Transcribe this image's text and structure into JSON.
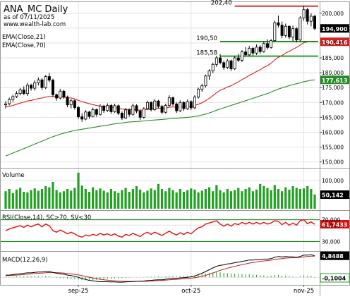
{
  "header": {
    "title": "ANA_MC Daily",
    "as_of": "as of 07/11/2025",
    "site": "www.wealth-lab.com"
  },
  "colors": {
    "bg": "#ffffff",
    "frame": "#9a9a9a",
    "grid": "#e2e2e2",
    "candle_up_fill": "#ffffff",
    "candle_down_fill": "#000000",
    "ema21": "#d42020",
    "ema70": "#2a8a2a",
    "level_red": "#cc0000",
    "level_green": "#008000",
    "volume_bar": "#22a022",
    "rsi_line": "#e01010",
    "macd_line": "#000000",
    "macd_signal": "#c02020",
    "macd_hist": "#22a022",
    "tag_price_bg": "#000000",
    "tag_ema21_bg": "#d42020",
    "tag_ema70_bg": "#2a8a2a"
  },
  "price_panel": {
    "indicator_labels": [
      "EMA(Close,21)",
      "EMA(Close,70)"
    ],
    "y_ticks": [
      150,
      155,
      160,
      165,
      170,
      175,
      180,
      185,
      190,
      195,
      200
    ],
    "y_tick_labels": [
      "150,000",
      "155,000",
      "160,000",
      "165,000",
      "170,000",
      "175,000",
      "180,000",
      "185,000",
      "190,000",
      "195,000",
      "200,000"
    ],
    "ylim": [
      148.5,
      203.5
    ],
    "tags": {
      "close": "194,900",
      "ema21": "190,416",
      "ema70": "177,613"
    },
    "levels": [
      {
        "label": "202,40",
        "value": 202.4,
        "from_bar": 63,
        "color_key": "level_red"
      },
      {
        "label": "190,50",
        "value": 190.5,
        "from_bar": 59,
        "color_key": "level_green"
      },
      {
        "label": "185,58",
        "value": 185.58,
        "from_bar": 59,
        "color_key": "level_green"
      }
    ]
  },
  "volume_panel": {
    "label": "Volume",
    "y_ticks": [
      50,
      100
    ],
    "y_tick_labels": [
      "50,000",
      "100,000"
    ],
    "ylim": [
      0,
      140
    ],
    "tag": "50,142"
  },
  "rsi_panel": {
    "label": "RSI(Close,14), SC>70, SV<30",
    "y_ticks": [
      30,
      60,
      70
    ],
    "y_tick_labels": [
      "30,000",
      "60,000",
      "70,000"
    ],
    "ylim": [
      15,
      85
    ],
    "bands": [
      70,
      30
    ],
    "tag": "61,7433"
  },
  "macd_panel": {
    "label": "MACD(12,26,9)",
    "ylim": [
      -1.4,
      5.6
    ],
    "tags": {
      "macd": "4,8488",
      "hist": "-0,1004"
    }
  },
  "x_axis": {
    "labels": [
      {
        "text": "sep-25",
        "bar": 20
      },
      {
        "text": "oct-25",
        "bar": 51
      },
      {
        "text": "nov-25",
        "bar": 82
      }
    ]
  },
  "chart_data": {
    "type": "candlestick",
    "title": "ANA_MC Daily",
    "ylim": [
      148.5,
      203.5
    ],
    "bars": [
      {
        "o": 169.2,
        "h": 170.5,
        "l": 168.0,
        "c": 169.5
      },
      {
        "o": 169.6,
        "h": 171.6,
        "l": 169.0,
        "c": 171.0
      },
      {
        "o": 171.0,
        "h": 172.6,
        "l": 170.2,
        "c": 172.0
      },
      {
        "o": 172.0,
        "h": 173.8,
        "l": 171.5,
        "c": 173.0
      },
      {
        "o": 173.0,
        "h": 174.9,
        "l": 172.4,
        "c": 174.2
      },
      {
        "o": 174.2,
        "h": 175.4,
        "l": 172.5,
        "c": 173.0
      },
      {
        "o": 173.0,
        "h": 176.6,
        "l": 172.2,
        "c": 175.8
      },
      {
        "o": 175.8,
        "h": 176.3,
        "l": 174.0,
        "c": 174.8
      },
      {
        "o": 174.8,
        "h": 177.4,
        "l": 174.0,
        "c": 176.6
      },
      {
        "o": 176.6,
        "h": 178.4,
        "l": 175.7,
        "c": 177.6
      },
      {
        "o": 177.6,
        "h": 178.2,
        "l": 174.2,
        "c": 175.0
      },
      {
        "o": 175.0,
        "h": 179.2,
        "l": 174.5,
        "c": 178.7
      },
      {
        "o": 178.7,
        "h": 179.9,
        "l": 176.8,
        "c": 177.5
      },
      {
        "o": 177.5,
        "h": 178.0,
        "l": 171.8,
        "c": 172.6
      },
      {
        "o": 172.6,
        "h": 173.0,
        "l": 170.6,
        "c": 171.5
      },
      {
        "o": 171.5,
        "h": 174.6,
        "l": 171.0,
        "c": 173.8
      },
      {
        "o": 173.8,
        "h": 174.2,
        "l": 171.2,
        "c": 171.8
      },
      {
        "o": 171.8,
        "h": 172.3,
        "l": 168.4,
        "c": 169.2
      },
      {
        "o": 169.2,
        "h": 171.2,
        "l": 168.0,
        "c": 170.6
      },
      {
        "o": 170.6,
        "h": 171.0,
        "l": 167.6,
        "c": 168.3
      },
      {
        "o": 168.3,
        "h": 168.8,
        "l": 164.5,
        "c": 165.2
      },
      {
        "o": 165.2,
        "h": 166.4,
        "l": 163.5,
        "c": 164.4
      },
      {
        "o": 164.4,
        "h": 167.4,
        "l": 164.0,
        "c": 166.8
      },
      {
        "o": 166.8,
        "h": 167.2,
        "l": 164.5,
        "c": 165.3
      },
      {
        "o": 165.3,
        "h": 168.3,
        "l": 165.0,
        "c": 167.6
      },
      {
        "o": 167.6,
        "h": 168.0,
        "l": 165.2,
        "c": 166.0
      },
      {
        "o": 166.0,
        "h": 169.4,
        "l": 165.6,
        "c": 168.8
      },
      {
        "o": 168.8,
        "h": 169.2,
        "l": 166.5,
        "c": 167.3
      },
      {
        "o": 167.3,
        "h": 169.7,
        "l": 166.8,
        "c": 169.0
      },
      {
        "o": 169.0,
        "h": 169.5,
        "l": 166.2,
        "c": 166.9
      },
      {
        "o": 166.9,
        "h": 169.6,
        "l": 166.5,
        "c": 168.9
      },
      {
        "o": 168.9,
        "h": 169.3,
        "l": 165.8,
        "c": 166.4
      },
      {
        "o": 166.4,
        "h": 167.0,
        "l": 164.1,
        "c": 164.8
      },
      {
        "o": 164.8,
        "h": 168.1,
        "l": 164.4,
        "c": 167.5
      },
      {
        "o": 167.5,
        "h": 168.0,
        "l": 165.2,
        "c": 166.0
      },
      {
        "o": 166.0,
        "h": 169.6,
        "l": 165.6,
        "c": 168.9
      },
      {
        "o": 168.9,
        "h": 169.4,
        "l": 166.4,
        "c": 167.1
      },
      {
        "o": 167.1,
        "h": 167.6,
        "l": 164.1,
        "c": 165.0
      },
      {
        "o": 165.0,
        "h": 168.4,
        "l": 164.6,
        "c": 167.9
      },
      {
        "o": 167.9,
        "h": 170.6,
        "l": 167.5,
        "c": 170.0
      },
      {
        "o": 170.0,
        "h": 170.4,
        "l": 167.0,
        "c": 167.6
      },
      {
        "o": 167.6,
        "h": 171.1,
        "l": 167.2,
        "c": 170.5
      },
      {
        "o": 170.5,
        "h": 170.9,
        "l": 168.1,
        "c": 168.7
      },
      {
        "o": 168.7,
        "h": 169.2,
        "l": 166.1,
        "c": 166.7
      },
      {
        "o": 166.7,
        "h": 169.6,
        "l": 166.3,
        "c": 169.0
      },
      {
        "o": 169.0,
        "h": 172.4,
        "l": 168.6,
        "c": 171.6
      },
      {
        "o": 171.6,
        "h": 172.0,
        "l": 168.9,
        "c": 169.5
      },
      {
        "o": 169.5,
        "h": 170.0,
        "l": 166.5,
        "c": 167.2
      },
      {
        "o": 167.2,
        "h": 170.7,
        "l": 166.8,
        "c": 170.0
      },
      {
        "o": 170.0,
        "h": 170.4,
        "l": 167.2,
        "c": 167.9
      },
      {
        "o": 167.9,
        "h": 171.0,
        "l": 167.5,
        "c": 170.3
      },
      {
        "o": 170.3,
        "h": 170.7,
        "l": 167.5,
        "c": 168.2
      },
      {
        "o": 168.2,
        "h": 172.4,
        "l": 167.8,
        "c": 171.8
      },
      {
        "o": 171.8,
        "h": 175.0,
        "l": 171.3,
        "c": 174.5
      },
      {
        "o": 174.5,
        "h": 176.3,
        "l": 173.6,
        "c": 175.6
      },
      {
        "o": 175.6,
        "h": 179.4,
        "l": 175.0,
        "c": 178.9
      },
      {
        "o": 178.9,
        "h": 181.2,
        "l": 177.6,
        "c": 180.6
      },
      {
        "o": 180.6,
        "h": 183.4,
        "l": 179.8,
        "c": 182.8
      },
      {
        "o": 182.8,
        "h": 185.7,
        "l": 182.0,
        "c": 185.0
      },
      {
        "o": 185.0,
        "h": 186.3,
        "l": 182.8,
        "c": 183.4
      },
      {
        "o": 183.4,
        "h": 184.0,
        "l": 181.0,
        "c": 181.8
      },
      {
        "o": 181.8,
        "h": 184.6,
        "l": 181.2,
        "c": 184.0
      },
      {
        "o": 184.0,
        "h": 184.4,
        "l": 180.6,
        "c": 181.3
      },
      {
        "o": 181.3,
        "h": 185.6,
        "l": 180.9,
        "c": 185.0
      },
      {
        "o": 185.0,
        "h": 186.4,
        "l": 183.6,
        "c": 184.2
      },
      {
        "o": 184.2,
        "h": 187.6,
        "l": 183.6,
        "c": 187.0
      },
      {
        "o": 187.0,
        "h": 188.6,
        "l": 185.4,
        "c": 186.0
      },
      {
        "o": 186.0,
        "h": 189.0,
        "l": 185.5,
        "c": 188.2
      },
      {
        "o": 188.2,
        "h": 188.7,
        "l": 185.8,
        "c": 186.6
      },
      {
        "o": 186.6,
        "h": 189.5,
        "l": 186.0,
        "c": 188.6
      },
      {
        "o": 188.6,
        "h": 189.2,
        "l": 186.4,
        "c": 187.1
      },
      {
        "o": 187.1,
        "h": 190.4,
        "l": 186.7,
        "c": 189.8
      },
      {
        "o": 189.8,
        "h": 191.2,
        "l": 187.8,
        "c": 188.5
      },
      {
        "o": 188.5,
        "h": 191.3,
        "l": 188.1,
        "c": 190.8
      },
      {
        "o": 190.8,
        "h": 197.5,
        "l": 190.3,
        "c": 196.8
      },
      {
        "o": 196.8,
        "h": 199.2,
        "l": 195.2,
        "c": 196.0
      },
      {
        "o": 196.0,
        "h": 197.2,
        "l": 191.6,
        "c": 192.5
      },
      {
        "o": 192.5,
        "h": 196.5,
        "l": 191.8,
        "c": 195.6
      },
      {
        "o": 195.6,
        "h": 196.0,
        "l": 191.3,
        "c": 192.0
      },
      {
        "o": 192.0,
        "h": 195.8,
        "l": 190.5,
        "c": 194.8
      },
      {
        "o": 194.8,
        "h": 195.3,
        "l": 190.2,
        "c": 191.0
      },
      {
        "o": 191.0,
        "h": 199.0,
        "l": 190.6,
        "c": 198.4
      },
      {
        "o": 198.4,
        "h": 202.4,
        "l": 197.5,
        "c": 201.2
      },
      {
        "o": 201.2,
        "h": 201.8,
        "l": 196.2,
        "c": 197.3
      },
      {
        "o": 197.3,
        "h": 200.0,
        "l": 195.6,
        "c": 199.0
      },
      {
        "o": 199.0,
        "h": 199.4,
        "l": 194.3,
        "c": 194.9
      }
    ],
    "ema21": [
      168.5,
      168.7,
      169.0,
      169.4,
      169.8,
      170.1,
      170.5,
      170.7,
      171.0,
      171.3,
      171.5,
      171.8,
      172.0,
      172.0,
      171.9,
      171.9,
      171.8,
      171.6,
      171.5,
      171.2,
      170.7,
      170.3,
      169.9,
      169.6,
      169.3,
      169.0,
      168.8,
      168.6,
      168.5,
      168.4,
      168.3,
      168.0,
      167.8,
      167.7,
      167.6,
      167.6,
      167.5,
      167.4,
      167.5,
      167.7,
      167.7,
      168.0,
      168.1,
      168.0,
      168.1,
      168.4,
      168.5,
      168.4,
      168.5,
      168.5,
      168.6,
      168.6,
      169.0,
      169.4,
      169.9,
      170.6,
      171.4,
      172.3,
      173.3,
      174.1,
      174.6,
      175.2,
      175.6,
      176.3,
      176.9,
      177.7,
      178.3,
      179.1,
      179.7,
      180.4,
      181.0,
      181.8,
      182.4,
      183.2,
      184.3,
      185.2,
      185.8,
      186.6,
      187.2,
      187.9,
      188.5,
      189.3,
      190.1,
      190.4,
      190.6,
      190.4
    ],
    "ema70": [
      152.0,
      152.5,
      153.0,
      153.5,
      154.0,
      154.5,
      155.0,
      155.5,
      156.0,
      156.5,
      157.0,
      157.5,
      158.0,
      158.5,
      158.9,
      159.3,
      159.7,
      160.0,
      160.3,
      160.6,
      160.8,
      161.0,
      161.2,
      161.4,
      161.6,
      161.8,
      162.0,
      162.2,
      162.4,
      162.6,
      162.8,
      163.0,
      163.1,
      163.3,
      163.4,
      163.5,
      163.6,
      163.7,
      163.8,
      163.9,
      164.0,
      164.1,
      164.2,
      164.3,
      164.4,
      164.5,
      164.6,
      164.7,
      164.8,
      164.9,
      165.0,
      165.1,
      165.3,
      165.5,
      165.8,
      166.1,
      166.5,
      166.9,
      167.4,
      167.8,
      168.2,
      168.6,
      169.0,
      169.4,
      169.8,
      170.2,
      170.6,
      171.0,
      171.4,
      171.8,
      172.2,
      172.6,
      173.0,
      173.5,
      174.0,
      174.5,
      174.9,
      175.3,
      175.7,
      176.0,
      176.3,
      176.6,
      177.0,
      177.2,
      177.5,
      177.6
    ],
    "volume": [
      62,
      70,
      55,
      68,
      74,
      60,
      58,
      66,
      72,
      64,
      70,
      80,
      76,
      95,
      66,
      58,
      62,
      70,
      64,
      74,
      128,
      82,
      70,
      60,
      76,
      66,
      72,
      64,
      58,
      70,
      62,
      56,
      66,
      74,
      60,
      70,
      80,
      68,
      58,
      64,
      72,
      66,
      88,
      70,
      62,
      74,
      66,
      58,
      70,
      60,
      66,
      72,
      68,
      58,
      64,
      70,
      76,
      62,
      84,
      66,
      58,
      70,
      62,
      66,
      74,
      62,
      70,
      76,
      62,
      68,
      88,
      80,
      74,
      66,
      84,
      70,
      62,
      76,
      68,
      80,
      74,
      70,
      72,
      80,
      70,
      50
    ],
    "rsi": [
      50,
      53,
      55,
      57,
      59,
      56,
      60,
      57,
      60,
      62,
      57,
      62,
      59,
      50,
      47,
      51,
      48,
      44,
      47,
      44,
      40,
      38,
      42,
      40,
      43,
      41,
      45,
      42,
      44,
      41,
      44,
      40,
      38,
      43,
      41,
      45,
      42,
      39,
      44,
      47,
      43,
      47,
      44,
      41,
      45,
      49,
      45,
      42,
      46,
      43,
      47,
      44,
      50,
      55,
      57,
      62,
      64,
      66,
      68,
      62,
      58,
      62,
      58,
      63,
      61,
      65,
      62,
      65,
      62,
      65,
      62,
      65,
      62,
      64,
      68,
      67,
      61,
      65,
      60,
      64,
      60,
      68,
      70,
      63,
      66,
      61.7
    ],
    "macd": [
      0.5,
      0.5,
      0.6,
      0.7,
      0.8,
      0.9,
      1.0,
      1.0,
      1.1,
      1.2,
      1.2,
      1.3,
      1.3,
      1.1,
      0.9,
      0.8,
      0.7,
      0.5,
      0.4,
      0.2,
      0.0,
      -0.3,
      -0.5,
      -0.7,
      -0.8,
      -0.9,
      -1.0,
      -1.0,
      -1.0,
      -1.05,
      -1.05,
      -1.1,
      -1.1,
      -1.05,
      -1.0,
      -0.95,
      -0.9,
      -0.9,
      -0.85,
      -0.75,
      -0.7,
      -0.6,
      -0.55,
      -0.55,
      -0.45,
      -0.3,
      -0.25,
      -0.25,
      -0.15,
      -0.1,
      0.0,
      0.1,
      0.3,
      0.6,
      0.9,
      1.3,
      1.7,
      2.1,
      2.5,
      2.7,
      2.8,
      3.0,
      3.1,
      3.3,
      3.4,
      3.6,
      3.7,
      3.9,
      3.9,
      4.0,
      4.0,
      4.1,
      4.1,
      4.2,
      4.5,
      4.7,
      4.6,
      4.7,
      4.6,
      4.6,
      4.5,
      4.7,
      5.0,
      5.0,
      5.1,
      4.85
    ],
    "macd_signal": [
      0.4,
      0.42,
      0.45,
      0.5,
      0.55,
      0.62,
      0.7,
      0.76,
      0.83,
      0.9,
      0.96,
      1.03,
      1.08,
      1.09,
      1.05,
      1.0,
      0.94,
      0.85,
      0.76,
      0.65,
      0.52,
      0.36,
      0.19,
      0.01,
      -0.15,
      -0.3,
      -0.44,
      -0.55,
      -0.64,
      -0.72,
      -0.79,
      -0.85,
      -0.9,
      -0.93,
      -0.94,
      -0.94,
      -0.93,
      -0.93,
      -0.91,
      -0.88,
      -0.84,
      -0.79,
      -0.74,
      -0.7,
      -0.65,
      -0.58,
      -0.51,
      -0.46,
      -0.4,
      -0.34,
      -0.27,
      -0.2,
      -0.1,
      0.04,
      0.21,
      0.43,
      0.68,
      0.96,
      1.27,
      1.56,
      1.81,
      2.05,
      2.26,
      2.47,
      2.66,
      2.85,
      3.02,
      3.19,
      3.33,
      3.46,
      3.57,
      3.68,
      3.77,
      3.86,
      3.99,
      4.13,
      4.22,
      4.32,
      4.38,
      4.43,
      4.45,
      4.5,
      4.6,
      4.68,
      4.76,
      4.78
    ],
    "macd_hist": [
      0.1,
      0.08,
      0.15,
      0.2,
      0.25,
      0.28,
      0.3,
      0.24,
      0.27,
      0.3,
      0.24,
      0.27,
      0.22,
      0.01,
      -0.15,
      -0.2,
      -0.24,
      -0.35,
      -0.36,
      -0.45,
      -0.52,
      -0.66,
      -0.69,
      -0.71,
      -0.65,
      -0.6,
      -0.56,
      -0.45,
      -0.36,
      -0.33,
      -0.26,
      -0.25,
      -0.2,
      -0.12,
      -0.06,
      -0.01,
      0.03,
      0.03,
      0.06,
      0.13,
      0.14,
      0.19,
      0.19,
      0.15,
      0.2,
      0.28,
      0.26,
      0.21,
      0.25,
      0.24,
      0.27,
      0.3,
      0.4,
      0.56,
      0.69,
      0.87,
      1.02,
      1.14,
      1.23,
      1.14,
      0.99,
      0.95,
      0.84,
      0.83,
      0.74,
      0.75,
      0.68,
      0.71,
      0.57,
      0.54,
      0.43,
      0.42,
      0.33,
      0.34,
      0.51,
      0.57,
      0.38,
      0.38,
      0.22,
      0.17,
      0.05,
      0.2,
      0.4,
      0.32,
      0.34,
      -0.1004
    ]
  }
}
